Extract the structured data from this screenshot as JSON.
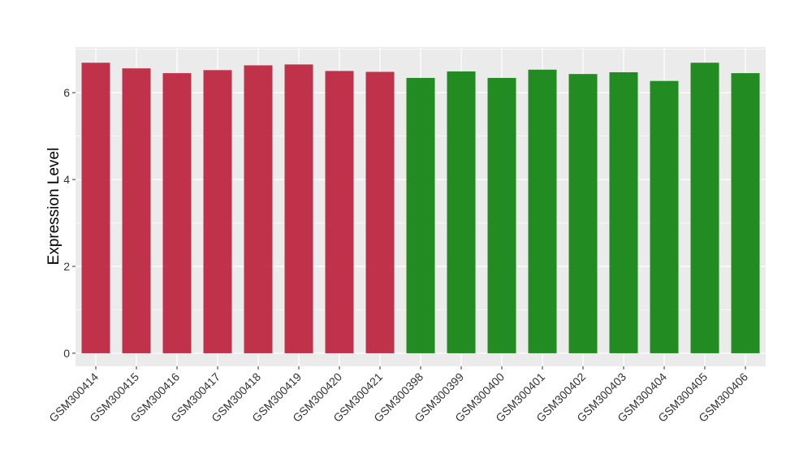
{
  "chart_data": {
    "type": "bar",
    "title": "",
    "xlabel": "",
    "ylabel": "Expression Level",
    "ylim": [
      -0.3,
      7.05
    ],
    "yticks": [
      0,
      2,
      4,
      6
    ],
    "grid": true,
    "legend": "none",
    "colors": {
      "group1": "#c0314a",
      "group2": "#228b22",
      "panel": "#ebebeb",
      "grid": "#ffffff"
    },
    "categories": [
      "GSM300414",
      "GSM300415",
      "GSM300416",
      "GSM300417",
      "GSM300418",
      "GSM300419",
      "GSM300420",
      "GSM300421",
      "GSM300398",
      "GSM300399",
      "GSM300400",
      "GSM300401",
      "GSM300402",
      "GSM300403",
      "GSM300404",
      "GSM300405",
      "GSM300406"
    ],
    "values": [
      6.69,
      6.56,
      6.45,
      6.52,
      6.63,
      6.65,
      6.5,
      6.48,
      6.34,
      6.49,
      6.34,
      6.53,
      6.43,
      6.47,
      6.27,
      6.69,
      6.45
    ],
    "groups": [
      "group1",
      "group1",
      "group1",
      "group1",
      "group1",
      "group1",
      "group1",
      "group1",
      "group2",
      "group2",
      "group2",
      "group2",
      "group2",
      "group2",
      "group2",
      "group2",
      "group2"
    ]
  }
}
